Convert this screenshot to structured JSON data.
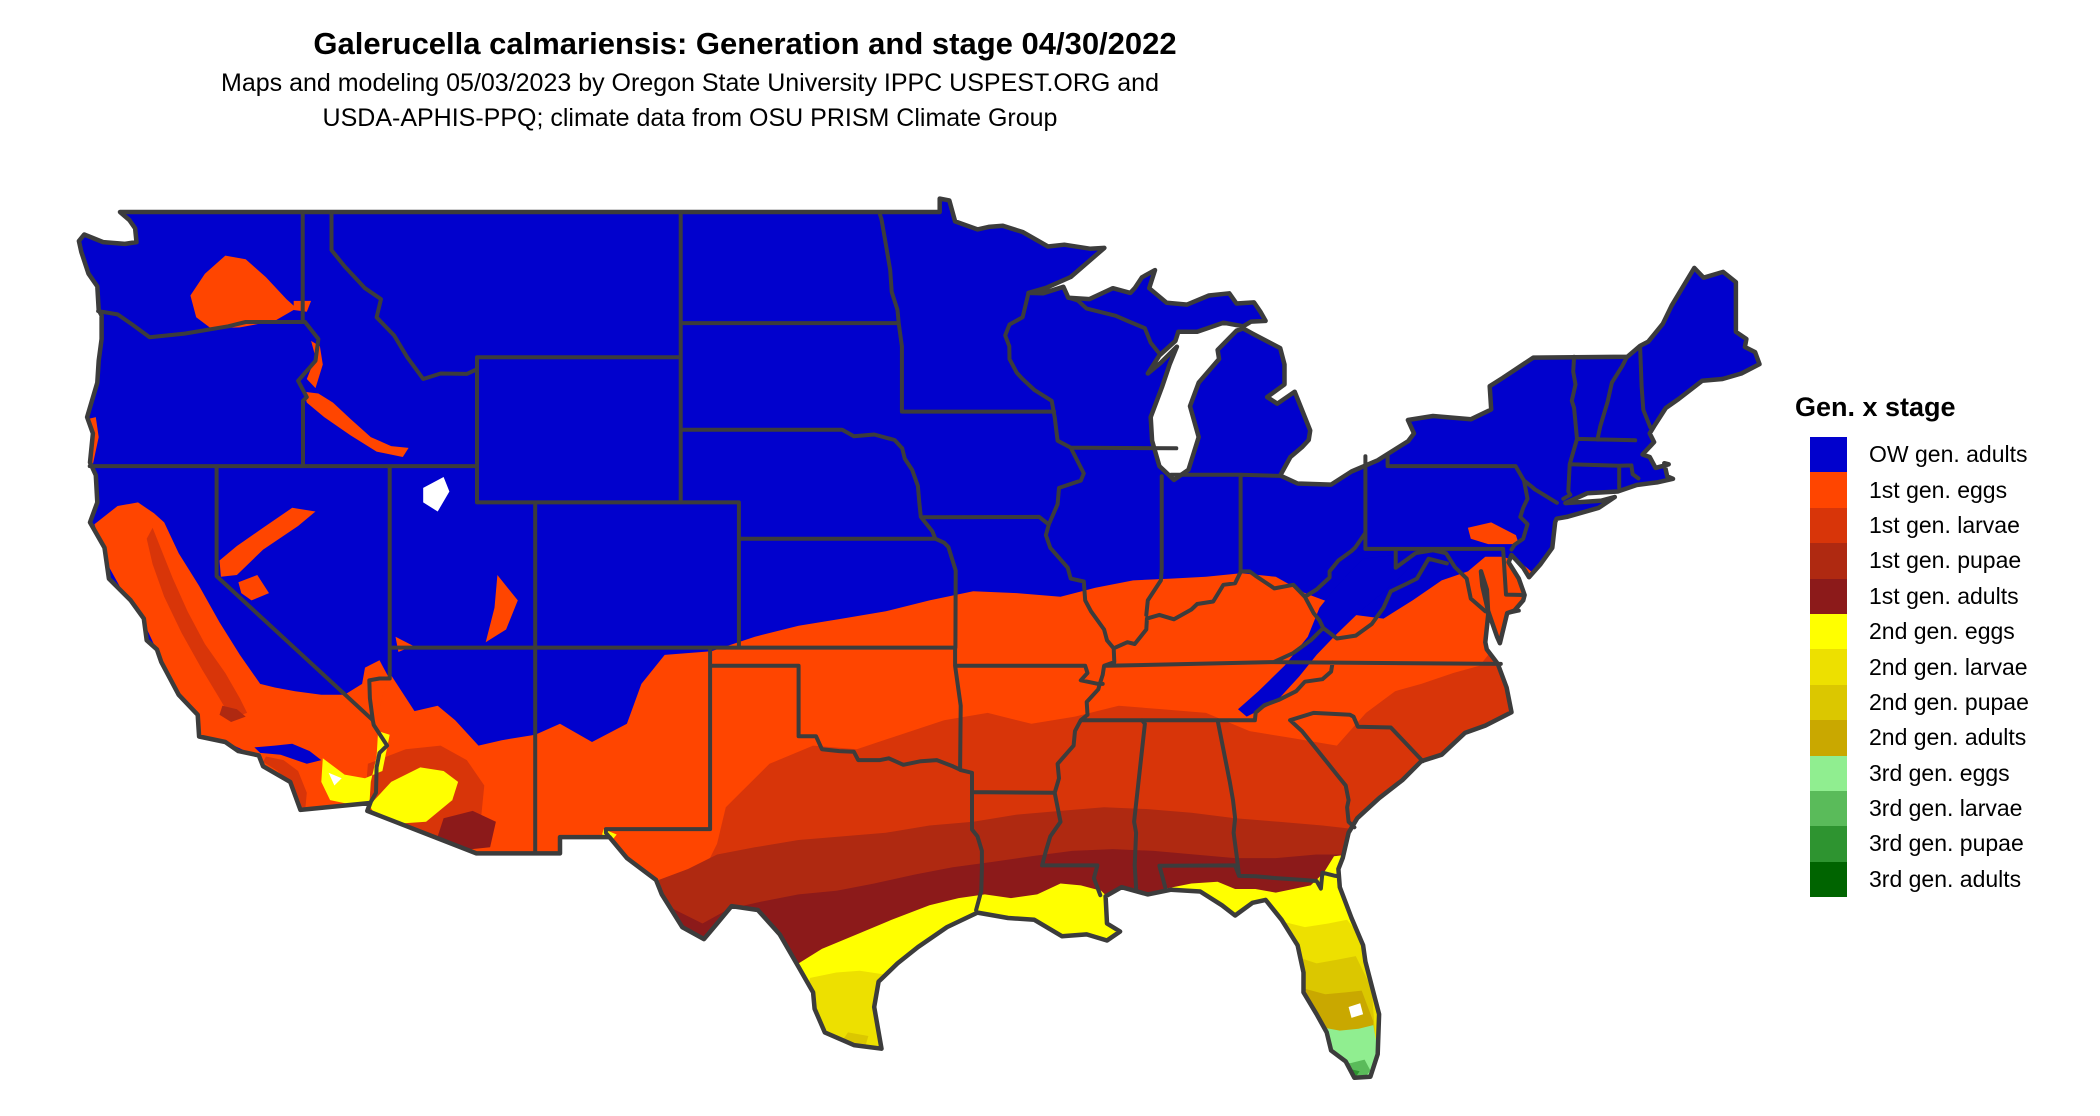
{
  "title": "Galerucella calmariensis: Generation and stage 04/30/2022",
  "subtitle": {
    "line1": "Maps and modeling 05/03/2023 by Oregon State University IPPC USPEST.ORG and",
    "line2": "USDA-APHIS-PPQ; climate data from OSU PRISM Climate Group"
  },
  "legend": {
    "title": "Gen. x stage",
    "entries": [
      {
        "label": "OW gen. adults",
        "color": "#0101CD"
      },
      {
        "label": "1st gen. eggs",
        "color": "#FF4500"
      },
      {
        "label": "1st gen. larvae",
        "color": "#D83509"
      },
      {
        "label": "1st gen. pupae",
        "color": "#AF2911"
      },
      {
        "label": "1st gen. adults",
        "color": "#8C1A1A"
      },
      {
        "label": "2nd gen. eggs",
        "color": "#FFFF00"
      },
      {
        "label": "2nd gen. larvae",
        "color": "#EDE000"
      },
      {
        "label": "2nd gen. pupae",
        "color": "#DBC700"
      },
      {
        "label": "2nd gen. adults",
        "color": "#C9A800"
      },
      {
        "label": "3rd gen. eggs",
        "color": "#90EE90"
      },
      {
        "label": "3rd gen. larvae",
        "color": "#5ABB5A"
      },
      {
        "label": "3rd gen. pupae",
        "color": "#2E9430"
      },
      {
        "label": "3rd gen. adults",
        "color": "#006400"
      }
    ]
  },
  "map": {
    "region": "Contiguous United States",
    "border_color": "#3C3C3C",
    "water_color": "#FFFFFF"
  }
}
